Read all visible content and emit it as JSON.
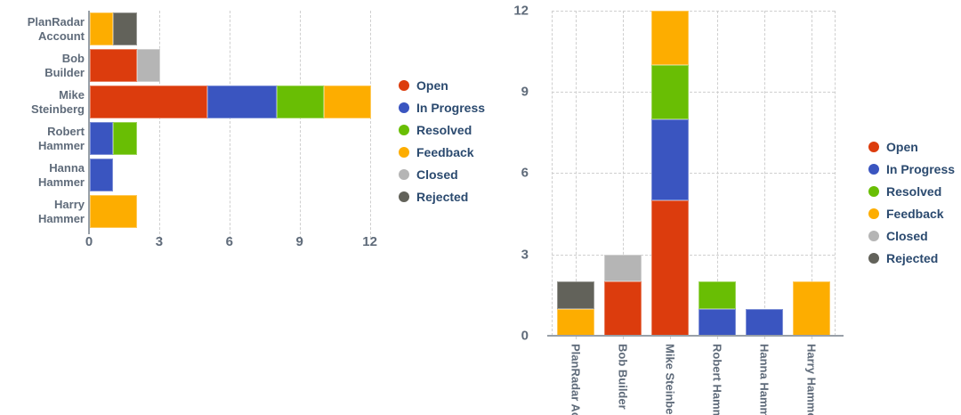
{
  "legend": {
    "items": [
      {
        "label": "Open",
        "color": "#dc3c0d"
      },
      {
        "label": "In Progress",
        "color": "#3a55c0"
      },
      {
        "label": "Resolved",
        "color": "#69be04"
      },
      {
        "label": "Feedback",
        "color": "#fdad00"
      },
      {
        "label": "Closed",
        "color": "#b5b5b5"
      },
      {
        "label": "Rejected",
        "color": "#62625a"
      }
    ]
  },
  "chart_data": [
    {
      "type": "bar",
      "orientation": "horizontal",
      "stacked": true,
      "title": "",
      "categories": [
        "PlanRadar Account",
        "Bob Builder",
        "Mike Steinberg",
        "Robert Hammer",
        "Hanna Hammer",
        "Harry Hammer"
      ],
      "series": [
        {
          "name": "Open",
          "color": "#dc3c0d",
          "values": [
            0,
            2,
            5,
            0,
            0,
            0
          ]
        },
        {
          "name": "In Progress",
          "color": "#3a55c0",
          "values": [
            0,
            0,
            3,
            1,
            1,
            0
          ]
        },
        {
          "name": "Resolved",
          "color": "#69be04",
          "values": [
            0,
            0,
            2,
            1,
            0,
            0
          ]
        },
        {
          "name": "Feedback",
          "color": "#fdad00",
          "values": [
            1,
            0,
            2,
            0,
            0,
            2
          ]
        },
        {
          "name": "Closed",
          "color": "#b5b5b5",
          "values": [
            0,
            1,
            0,
            0,
            0,
            0
          ]
        },
        {
          "name": "Rejected",
          "color": "#62625a",
          "values": [
            1,
            0,
            0,
            0,
            0,
            0
          ]
        }
      ],
      "category_totals": [
        2,
        3,
        12,
        2,
        1,
        2
      ],
      "value_axis": {
        "min": 0,
        "max": 12,
        "ticks": [
          0,
          3,
          6,
          9,
          12
        ]
      },
      "grid": "dashed",
      "legend_position": "right"
    },
    {
      "type": "bar",
      "orientation": "vertical",
      "stacked": true,
      "title": "",
      "categories": [
        "PlanRadar Account",
        "Bob Builder",
        "Mike Steinberg",
        "Robert Hammer",
        "Hanna Hammer",
        "Harry Hammer"
      ],
      "series": [
        {
          "name": "Open",
          "color": "#dc3c0d",
          "values": [
            0,
            2,
            5,
            0,
            0,
            0
          ]
        },
        {
          "name": "In Progress",
          "color": "#3a55c0",
          "values": [
            0,
            0,
            3,
            1,
            1,
            0
          ]
        },
        {
          "name": "Resolved",
          "color": "#69be04",
          "values": [
            0,
            0,
            2,
            1,
            0,
            0
          ]
        },
        {
          "name": "Feedback",
          "color": "#fdad00",
          "values": [
            1,
            0,
            2,
            0,
            0,
            2
          ]
        },
        {
          "name": "Closed",
          "color": "#b5b5b5",
          "values": [
            0,
            1,
            0,
            0,
            0,
            0
          ]
        },
        {
          "name": "Rejected",
          "color": "#62625a",
          "values": [
            1,
            0,
            0,
            0,
            0,
            0
          ]
        }
      ],
      "category_totals": [
        2,
        3,
        12,
        2,
        1,
        2
      ],
      "value_axis": {
        "min": 0,
        "max": 12,
        "ticks": [
          0,
          3,
          6,
          9,
          12
        ]
      },
      "grid": "dashed",
      "legend_position": "right"
    }
  ]
}
